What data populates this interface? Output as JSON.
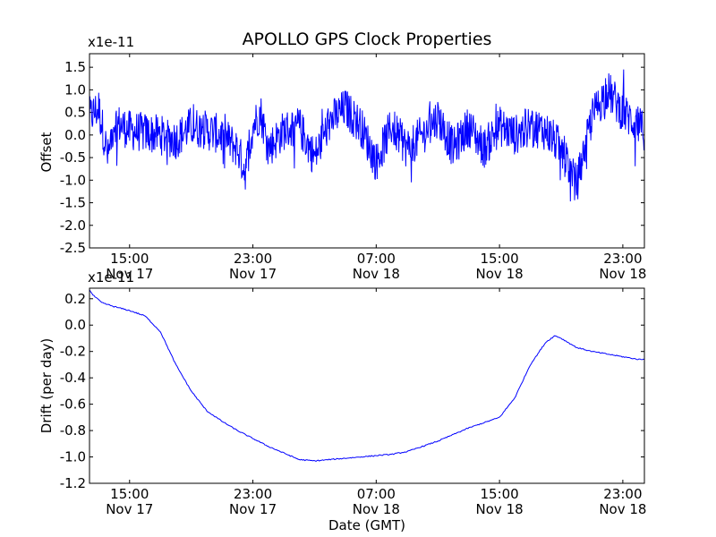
{
  "colors": {
    "series": "#0000ff",
    "axis": "#000000",
    "background": "#ffffff"
  },
  "chart_data": [
    {
      "type": "line",
      "title": "APOLLO GPS Clock Properties",
      "ylabel": "Offset",
      "y_multiplier": "x1e-11",
      "ylim": [
        -2.5,
        1.8
      ],
      "yticks": [
        -2.5,
        -2.0,
        -1.5,
        -1.0,
        -0.5,
        0.0,
        0.5,
        1.0,
        1.5
      ],
      "ytick_labels": [
        "-2.5",
        "-2.0",
        "-1.5",
        "-1.0",
        "-0.5",
        "0.0",
        "0.5",
        "1.0",
        "1.5"
      ],
      "xlim_hours": [
        12.4,
        48.4
      ],
      "xticks_hours": [
        15,
        23,
        31,
        39,
        47
      ],
      "xtick_labels": [
        [
          "15:00",
          "Nov 17"
        ],
        [
          "23:00",
          "Nov 17"
        ],
        [
          "07:00",
          "Nov 18"
        ],
        [
          "15:00",
          "Nov 18"
        ],
        [
          "23:00",
          "Nov 18"
        ]
      ],
      "series": [
        {
          "name": "offset",
          "x_hours": [
            12.4,
            13.0,
            13.6,
            14.0,
            15.0,
            16.0,
            17.0,
            18.0,
            19.0,
            20.0,
            21.0,
            22.0,
            22.5,
            23.0,
            23.5,
            24.0,
            25.0,
            26.0,
            27.0,
            28.0,
            29.0,
            30.0,
            31.0,
            32.0,
            33.0,
            34.0,
            35.0,
            36.0,
            37.0,
            38.0,
            39.0,
            40.0,
            41.0,
            42.0,
            43.0,
            44.0,
            45.0,
            46.0,
            47.0,
            48.0,
            48.4
          ],
          "values": [
            0.4,
            0.6,
            -0.5,
            0.3,
            0.1,
            0.05,
            0.0,
            -0.1,
            0.2,
            0.1,
            0.0,
            -0.3,
            -0.8,
            0.2,
            0.5,
            -0.3,
            0.1,
            0.2,
            -0.5,
            0.3,
            0.6,
            0.2,
            -0.6,
            0.2,
            -0.3,
            0.0,
            0.4,
            -0.3,
            0.2,
            -0.3,
            0.2,
            0.0,
            0.2,
            0.1,
            -0.3,
            -1.1,
            0.4,
            1.0,
            0.5,
            0.2,
            0.1
          ]
        }
      ]
    },
    {
      "type": "line",
      "xlabel": "Date (GMT)",
      "ylabel": "Drift (per day)",
      "y_multiplier": "x1e-11",
      "ylim": [
        -1.2,
        0.28
      ],
      "yticks": [
        -1.2,
        -1.0,
        -0.8,
        -0.6,
        -0.4,
        -0.2,
        0.0,
        0.2
      ],
      "ytick_labels": [
        "-1.2",
        "-1.0",
        "-0.8",
        "-0.6",
        "-0.4",
        "-0.2",
        "0.0",
        "0.2"
      ],
      "xlim_hours": [
        12.4,
        48.4
      ],
      "xticks_hours": [
        15,
        23,
        31,
        39,
        47
      ],
      "xtick_labels": [
        [
          "15:00",
          "Nov 17"
        ],
        [
          "23:00",
          "Nov 17"
        ],
        [
          "07:00",
          "Nov 18"
        ],
        [
          "15:00",
          "Nov 18"
        ],
        [
          "23:00",
          "Nov 18"
        ]
      ],
      "series": [
        {
          "name": "drift",
          "x_hours": [
            12.4,
            12.6,
            13.2,
            14.0,
            15.0,
            16.0,
            17.0,
            18.0,
            19.0,
            20.0,
            21.0,
            22.0,
            23.0,
            24.0,
            25.0,
            26.0,
            27.0,
            28.0,
            29.0,
            30.0,
            31.0,
            32.0,
            33.0,
            34.0,
            35.0,
            36.0,
            37.0,
            38.0,
            39.0,
            40.0,
            41.0,
            42.0,
            42.6,
            43.0,
            44.0,
            45.0,
            46.0,
            47.0,
            48.0,
            48.4
          ],
          "values": [
            0.27,
            0.23,
            0.17,
            0.14,
            0.11,
            0.07,
            -0.05,
            -0.3,
            -0.5,
            -0.65,
            -0.73,
            -0.8,
            -0.86,
            -0.92,
            -0.97,
            -1.02,
            -1.03,
            -1.02,
            -1.01,
            -1.0,
            -0.99,
            -0.98,
            -0.96,
            -0.92,
            -0.88,
            -0.83,
            -0.78,
            -0.74,
            -0.7,
            -0.55,
            -0.3,
            -0.13,
            -0.08,
            -0.1,
            -0.17,
            -0.2,
            -0.22,
            -0.24,
            -0.26,
            -0.26
          ]
        }
      ]
    }
  ]
}
